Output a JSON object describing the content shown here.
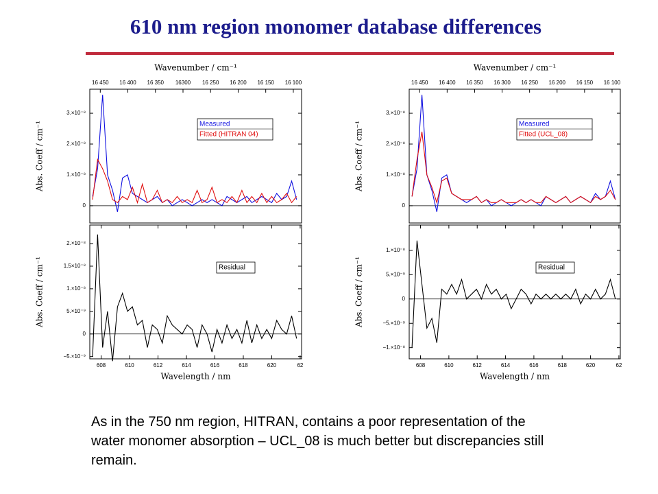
{
  "title": "610 nm region monomer database differences",
  "caption": [
    "As in the 750 nm region, HITRAN, contains a poor representation of the",
    "water monomer absorption – UCL_08 is much better but discrepancies still",
    "remain."
  ],
  "chart_data": [
    {
      "type": "line",
      "ylabel": "Abs. Coeff / cm⁻¹",
      "x2label": "Wavenumber / cm⁻¹",
      "x2lim": [
        16469,
        16085
      ],
      "x2ticks": [
        {
          "value": 16450,
          "label": "16 450"
        },
        {
          "value": 16400,
          "label": "16 400"
        },
        {
          "value": 16350,
          "label": "16 350"
        },
        {
          "value": 16300,
          "label": "16300"
        },
        {
          "value": 16250,
          "label": "16 250"
        },
        {
          "value": 16200,
          "label": "16 200"
        },
        {
          "value": 16150,
          "label": "16 150"
        },
        {
          "value": 16100,
          "label": "16 100"
        }
      ],
      "xlim": [
        607.2,
        622.1
      ],
      "ylim": [
        -5.6e-09,
        3.78e-08
      ],
      "yticks": [
        0,
        {
          "value": 1e-08,
          "label": "1.×10⁻⁸"
        },
        {
          "value": 2e-08,
          "label": "2.×10⁻⁸"
        },
        {
          "value": 3e-08,
          "label": "3.×10⁻⁸"
        }
      ],
      "x": [
        607.4,
        607.75,
        608.1,
        608.45,
        608.8,
        609.15,
        609.5,
        609.85,
        610.2,
        610.55,
        610.9,
        611.25,
        611.6,
        611.95,
        612.3,
        612.65,
        613.0,
        613.35,
        613.7,
        614.05,
        614.4,
        614.75,
        615.1,
        615.45,
        615.8,
        616.15,
        616.5,
        616.85,
        617.2,
        617.55,
        617.9,
        618.25,
        618.6,
        618.95,
        619.3,
        619.65,
        620.0,
        620.35,
        620.7,
        621.05,
        621.4,
        621.75
      ],
      "series": [
        {
          "name": "Measured",
          "color": "#1010e0",
          "values": [
            3e-09,
            1.2e-08,
            3.6e-08,
            1e-08,
            5e-09,
            -2e-09,
            9e-09,
            1e-08,
            4e-09,
            3e-09,
            2e-09,
            1e-09,
            2e-09,
            3e-09,
            1e-09,
            2e-09,
            0,
            1e-09,
            2e-09,
            1e-09,
            0,
            1e-09,
            2e-09,
            1e-09,
            2e-09,
            1e-09,
            0,
            3e-09,
            2e-09,
            1e-09,
            2e-09,
            3e-09,
            1e-09,
            2e-09,
            3e-09,
            2e-09,
            1e-09,
            4e-09,
            2e-09,
            3e-09,
            8e-09,
            2e-09
          ]
        },
        {
          "name": "Fitted (HITRAN 04)",
          "color": "#e01010",
          "values": [
            2e-09,
            1.5e-08,
            1.2e-08,
            8e-09,
            2e-09,
            1e-09,
            3e-09,
            2e-09,
            6e-09,
            1e-09,
            7e-09,
            1e-09,
            2e-09,
            5e-09,
            1e-09,
            2e-09,
            1e-09,
            3e-09,
            1e-09,
            2e-09,
            1e-09,
            5e-09,
            1e-09,
            2e-09,
            6e-09,
            1e-09,
            2e-09,
            1e-09,
            3e-09,
            1e-09,
            5e-09,
            1e-09,
            3e-09,
            1e-09,
            4e-09,
            1e-09,
            3e-09,
            1e-09,
            2e-09,
            4e-09,
            1e-09,
            3e-09
          ]
        }
      ]
    },
    {
      "type": "line",
      "ylabel": "Abs. Coeff / cm⁻¹",
      "xlabel": "Wavelength / nm",
      "xlim": [
        607.2,
        622.1
      ],
      "xticks": [
        608,
        610,
        612,
        614,
        616,
        618,
        620,
        {
          "value": 622,
          "label": "62"
        }
      ],
      "ylim": [
        -5.5e-09,
        2.41e-08
      ],
      "yticks": [
        {
          "value": -5e-09,
          "label": "−5.×10⁻⁹"
        },
        0,
        {
          "value": 5e-09,
          "label": "5.×10⁻⁹"
        },
        {
          "value": 1e-08,
          "label": "1.×10⁻⁸"
        },
        {
          "value": 1.5e-08,
          "label": "1.5×10⁻⁸"
        },
        {
          "value": 2e-08,
          "label": "2.×10⁻⁸"
        }
      ],
      "x": [
        607.4,
        607.75,
        608.1,
        608.45,
        608.8,
        609.15,
        609.5,
        609.85,
        610.2,
        610.55,
        610.9,
        611.25,
        611.6,
        611.95,
        612.3,
        612.65,
        613.0,
        613.35,
        613.7,
        614.05,
        614.4,
        614.75,
        615.1,
        615.45,
        615.8,
        616.15,
        616.5,
        616.85,
        617.2,
        617.55,
        617.9,
        618.25,
        618.6,
        618.95,
        619.3,
        619.65,
        620.0,
        620.35,
        620.7,
        621.05,
        621.4,
        621.75
      ],
      "series": [
        {
          "name": "Residual",
          "color": "#000000",
          "values": [
            -5e-09,
            2.2e-08,
            -3e-09,
            5e-09,
            -6e-09,
            6e-09,
            9e-09,
            5e-09,
            6e-09,
            2e-09,
            3e-09,
            -3e-09,
            2e-09,
            1e-09,
            -2e-09,
            4e-09,
            2e-09,
            1e-09,
            0,
            2e-09,
            1e-09,
            -3e-09,
            2e-09,
            0,
            -4e-09,
            1e-09,
            -2e-09,
            2e-09,
            -1e-09,
            1e-09,
            -2e-09,
            3e-09,
            -2e-09,
            2e-09,
            -1e-09,
            1e-09,
            -1e-09,
            3e-09,
            1e-09,
            0,
            4e-09,
            -1e-09
          ]
        }
      ]
    },
    {
      "type": "line",
      "ylabel": "Abs. Coeff / cm⁻¹",
      "x2label": "Wavenumber / cm⁻¹",
      "x2lim": [
        16469,
        16085
      ],
      "x2ticks": [
        {
          "value": 16450,
          "label": "16 450"
        },
        {
          "value": 16400,
          "label": "16 400"
        },
        {
          "value": 16350,
          "label": "16 350"
        },
        {
          "value": 16300,
          "label": "16 300"
        },
        {
          "value": 16250,
          "label": "16 250"
        },
        {
          "value": 16200,
          "label": "16 200"
        },
        {
          "value": 16150,
          "label": "16 150"
        },
        {
          "value": 16100,
          "label": "16 100"
        }
      ],
      "xlim": [
        607.2,
        622.1
      ],
      "ylim": [
        -5.6e-09,
        3.78e-08
      ],
      "yticks": [
        0,
        {
          "value": 1e-08,
          "label": "1.×10⁻⁸"
        },
        {
          "value": 2e-08,
          "label": "2.×10⁻⁸"
        },
        {
          "value": 3e-08,
          "label": "3.×10⁻⁸"
        }
      ],
      "x": [
        607.4,
        607.75,
        608.1,
        608.45,
        608.8,
        609.15,
        609.5,
        609.85,
        610.2,
        610.55,
        610.9,
        611.25,
        611.6,
        611.95,
        612.3,
        612.65,
        613.0,
        613.35,
        613.7,
        614.05,
        614.4,
        614.75,
        615.1,
        615.45,
        615.8,
        616.15,
        616.5,
        616.85,
        617.2,
        617.55,
        617.9,
        618.25,
        618.6,
        618.95,
        619.3,
        619.65,
        620.0,
        620.35,
        620.7,
        621.05,
        621.4,
        621.75
      ],
      "series": [
        {
          "name": "Measured",
          "color": "#1010e0",
          "values": [
            3e-09,
            1.2e-08,
            3.6e-08,
            1e-08,
            5e-09,
            -2e-09,
            9e-09,
            1e-08,
            4e-09,
            3e-09,
            2e-09,
            1e-09,
            2e-09,
            3e-09,
            1e-09,
            2e-09,
            0,
            1e-09,
            2e-09,
            1e-09,
            0,
            1e-09,
            2e-09,
            1e-09,
            2e-09,
            1e-09,
            0,
            3e-09,
            2e-09,
            1e-09,
            2e-09,
            3e-09,
            1e-09,
            2e-09,
            3e-09,
            2e-09,
            1e-09,
            4e-09,
            2e-09,
            3e-09,
            8e-09,
            2e-09
          ]
        },
        {
          "name": "Fitted (UCL_08)",
          "color": "#e01010",
          "values": [
            3e-09,
            1.5e-08,
            2.4e-08,
            1e-08,
            6e-09,
            1e-09,
            8e-09,
            9e-09,
            4e-09,
            3e-09,
            2e-09,
            2e-09,
            2e-09,
            3e-09,
            1e-09,
            2e-09,
            1e-09,
            1e-09,
            2e-09,
            1e-09,
            1e-09,
            1e-09,
            2e-09,
            1e-09,
            2e-09,
            1e-09,
            1e-09,
            3e-09,
            2e-09,
            1e-09,
            2e-09,
            3e-09,
            1e-09,
            2e-09,
            3e-09,
            2e-09,
            1e-09,
            3e-09,
            2e-09,
            3e-09,
            5e-09,
            2e-09
          ]
        }
      ]
    },
    {
      "type": "line",
      "ylabel": "Abs. Coeff / cm⁻¹",
      "xlabel": "Wavelength / nm",
      "xlim": [
        607.2,
        622.1
      ],
      "xticks": [
        608,
        610,
        612,
        614,
        616,
        618,
        620,
        {
          "value": 622,
          "label": "62"
        }
      ],
      "ylim": [
        -1.23e-08,
        1.52e-08
      ],
      "yticks": [
        {
          "value": -1e-08,
          "label": "−1.×10⁻⁸"
        },
        {
          "value": -5e-09,
          "label": "−5.×10⁻⁹"
        },
        0,
        {
          "value": 5e-09,
          "label": "5.×10⁻⁹"
        },
        {
          "value": 1e-08,
          "label": "1.×10⁻⁸"
        }
      ],
      "x": [
        607.4,
        607.75,
        608.1,
        608.45,
        608.8,
        609.15,
        609.5,
        609.85,
        610.2,
        610.55,
        610.9,
        611.25,
        611.6,
        611.95,
        612.3,
        612.65,
        613.0,
        613.35,
        613.7,
        614.05,
        614.4,
        614.75,
        615.1,
        615.45,
        615.8,
        616.15,
        616.5,
        616.85,
        617.2,
        617.55,
        617.9,
        618.25,
        618.6,
        618.95,
        619.3,
        619.65,
        620.0,
        620.35,
        620.7,
        621.05,
        621.4,
        621.75
      ],
      "series": [
        {
          "name": "Residual",
          "color": "#000000",
          "values": [
            -1e-08,
            1.2e-08,
            3e-09,
            -6e-09,
            -4e-09,
            -9e-09,
            2e-09,
            1e-09,
            3e-09,
            1e-09,
            4e-09,
            0,
            1e-09,
            2e-09,
            0,
            3e-09,
            1e-09,
            2e-09,
            0,
            1e-09,
            -2e-09,
            0,
            2e-09,
            1e-09,
            -1e-09,
            1e-09,
            0,
            1e-09,
            0,
            1e-09,
            0,
            1e-09,
            0,
            2e-09,
            -1e-09,
            1e-09,
            0,
            2e-09,
            0,
            1e-09,
            4e-09,
            0
          ]
        }
      ]
    }
  ]
}
